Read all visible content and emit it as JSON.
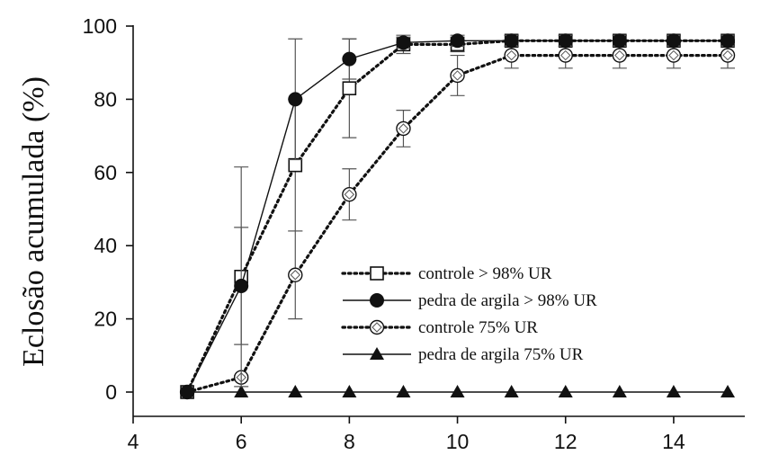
{
  "chart_data": {
    "type": "line",
    "title": "",
    "xlabel": "",
    "ylabel": "Eclosão acumulada (%)",
    "xlim": [
      4,
      15
    ],
    "ylim": [
      0,
      100
    ],
    "xticks": [
      4,
      6,
      8,
      10,
      12,
      14
    ],
    "yticks": [
      0,
      20,
      40,
      60,
      80,
      100
    ],
    "grid": false,
    "legend_position": "bottom-right",
    "x": [
      5,
      6,
      7,
      8,
      9,
      10,
      11,
      12,
      13,
      14,
      15
    ],
    "series": [
      {
        "name": "controle  > 98% UR",
        "marker": "open-square",
        "line": "dotted",
        "values": [
          0,
          31.5,
          62,
          83,
          95,
          95,
          96,
          96,
          96,
          96,
          96
        ],
        "errors": [
          0,
          30,
          18,
          13.5,
          2.5,
          2,
          1.5,
          1.5,
          1.5,
          1.5,
          1.5
        ]
      },
      {
        "name": "pedra de argila > 98% UR",
        "marker": "filled-circle",
        "line": "solid",
        "values": [
          0,
          29,
          80,
          91,
          95.5,
          96,
          96,
          96,
          96,
          96,
          96
        ],
        "errors": [
          0,
          16,
          16.5,
          5.5,
          1.5,
          1.5,
          1.5,
          1.5,
          1.5,
          1.5,
          1.5
        ]
      },
      {
        "name": "controle 75% UR",
        "marker": "open-diamond-circle",
        "line": "dotted",
        "values": [
          0,
          4,
          32,
          54,
          72,
          86.5,
          92,
          92,
          92,
          92,
          92
        ],
        "errors": [
          0,
          0.5,
          12,
          7,
          5,
          5.5,
          3.5,
          3.5,
          3.5,
          3.5,
          3.5
        ]
      },
      {
        "name": "pedra de argila 75% UR",
        "marker": "filled-triangle",
        "line": "solid",
        "values": [
          0,
          0,
          0,
          0,
          0,
          0,
          0,
          0,
          0,
          0,
          0
        ],
        "errors": [
          0,
          0,
          0,
          0,
          0,
          0,
          0,
          0,
          0,
          0,
          0
        ]
      }
    ]
  }
}
